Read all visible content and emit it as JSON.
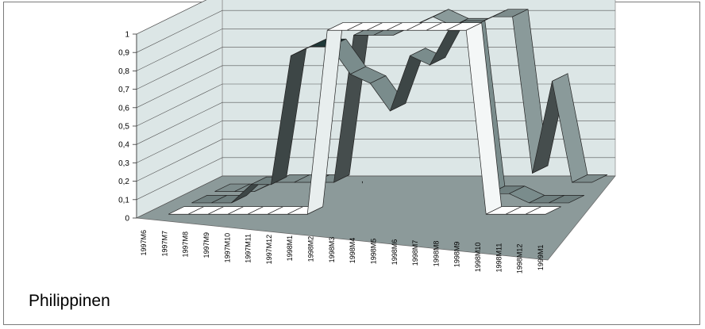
{
  "chart_data": {
    "type": "line",
    "view": "3d-ribbon",
    "caption": "Philippinen",
    "categories": [
      "1997M6",
      "1997M7",
      "1997M8",
      "1997M9",
      "1997M10",
      "1997M11",
      "1997M12",
      "1998M1",
      "1998M2",
      "1998M3",
      "1998M4",
      "1998M5",
      "1998M6",
      "1998M7",
      "1998M8",
      "1998M9",
      "1998M10",
      "1998M11",
      "1998M12",
      "1999M1"
    ],
    "ylim": [
      0,
      1
    ],
    "yticks": [
      "0",
      "0,1",
      "0,2",
      "0,3",
      "0,4",
      "0,5",
      "0,6",
      "0,7",
      "0,8",
      "0,9",
      "1"
    ],
    "grid": true,
    "series": [
      {
        "color": "#7d8c8c",
        "values": [
          0,
          0,
          0,
          0.05,
          0.05,
          0.05,
          0.05,
          0.85,
          0.85,
          0.85,
          0.9,
          0.95,
          0.9,
          0.9,
          0.95,
          0.95,
          0.1,
          0.6,
          0.05,
          0.05
        ]
      },
      {
        "color": "#6f7f7f",
        "values": [
          0,
          0,
          0,
          0.1,
          0.1,
          0.8,
          0.85,
          0.85,
          0.7,
          0.65,
          0.5,
          0.8,
          0.75,
          0.95,
          0.95,
          0.05,
          0.05,
          0,
          0,
          0
        ]
      },
      {
        "color": "#ffffff",
        "values": [
          0,
          0,
          0,
          0,
          0,
          0,
          0,
          0,
          1,
          1,
          1,
          1,
          1,
          1,
          1,
          1,
          0,
          0,
          0,
          0
        ]
      }
    ],
    "annotations": [
      ","
    ]
  },
  "colors": {
    "floor": "#8c9a9a",
    "walls": "#dce6e6",
    "dark_face": "#1f3838"
  }
}
